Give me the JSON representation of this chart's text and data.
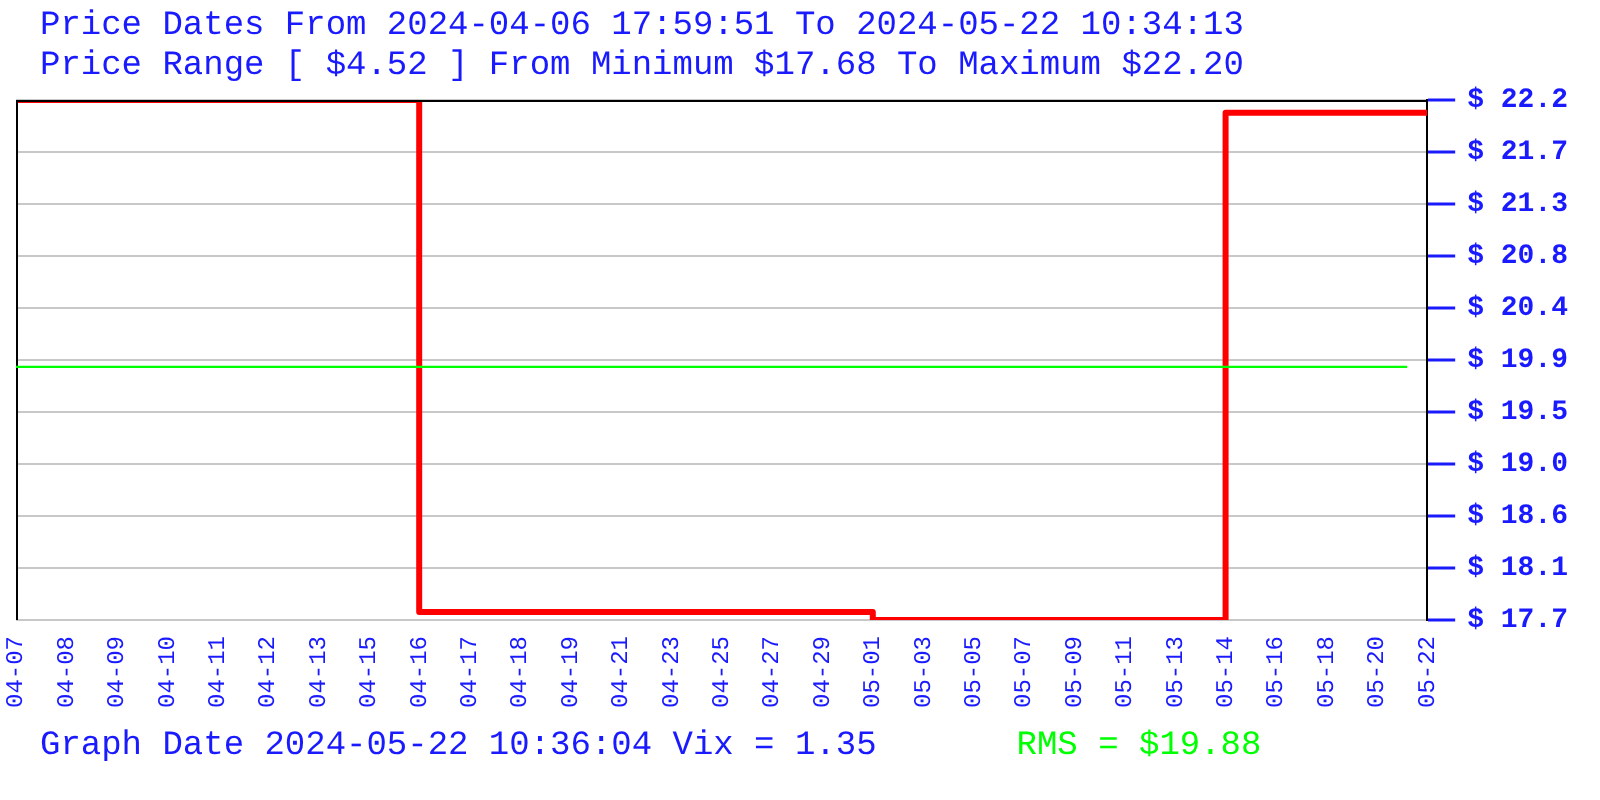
{
  "chart_data": {
    "type": "step",
    "title": "Price Dates From 2024-04-06 17:59:51 To 2024-05-22 10:34:13",
    "subtitle": "Price Range [ $4.52 ] From Minimum $17.68 To Maximum $22.20",
    "categories": [
      "04-07",
      "04-08",
      "04-09",
      "04-10",
      "04-11",
      "04-12",
      "04-13",
      "04-15",
      "04-16",
      "04-17",
      "04-18",
      "04-19",
      "04-21",
      "04-23",
      "04-25",
      "04-27",
      "04-29",
      "05-01",
      "05-03",
      "05-05",
      "05-07",
      "05-09",
      "05-11",
      "05-13",
      "05-14",
      "05-16",
      "05-18",
      "05-20",
      "05-22"
    ],
    "series": [
      {
        "color": "#ff0000",
        "values": [
          22.2,
          22.2,
          22.2,
          22.2,
          22.2,
          22.2,
          22.2,
          22.2,
          17.75,
          17.75,
          17.75,
          17.75,
          17.75,
          17.75,
          17.75,
          17.75,
          17.75,
          17.68,
          17.68,
          17.68,
          17.68,
          17.68,
          17.68,
          17.68,
          22.09,
          22.09,
          22.09,
          22.09,
          22.09
        ]
      }
    ],
    "ylim": [
      17.68,
      22.2
    ],
    "yticks": [
      {
        "value": 17.68,
        "label": "$ 17.7"
      },
      {
        "value": 18.132,
        "label": "$ 18.1"
      },
      {
        "value": 18.584,
        "label": "$ 18.6"
      },
      {
        "value": 19.036,
        "label": "$ 19.0"
      },
      {
        "value": 19.488,
        "label": "$ 19.5"
      },
      {
        "value": 19.94,
        "label": "$ 19.9"
      },
      {
        "value": 20.392,
        "label": "$ 20.4"
      },
      {
        "value": 20.844,
        "label": "$ 20.8"
      },
      {
        "value": 21.296,
        "label": "$ 21.3"
      },
      {
        "value": 21.748,
        "label": "$ 21.7"
      },
      {
        "value": 22.2,
        "label": "$ 22.2"
      }
    ],
    "ref_lines": [
      {
        "axis": "y",
        "value": 19.88,
        "label": "RMS = $19.88",
        "color": "#00ff00"
      }
    ],
    "annotations": [
      "Graph Date 2024-05-22 10:36:04 Vix = 1.35"
    ],
    "grid": "y",
    "legend": false,
    "marker": "none",
    "line_style": "solid"
  }
}
